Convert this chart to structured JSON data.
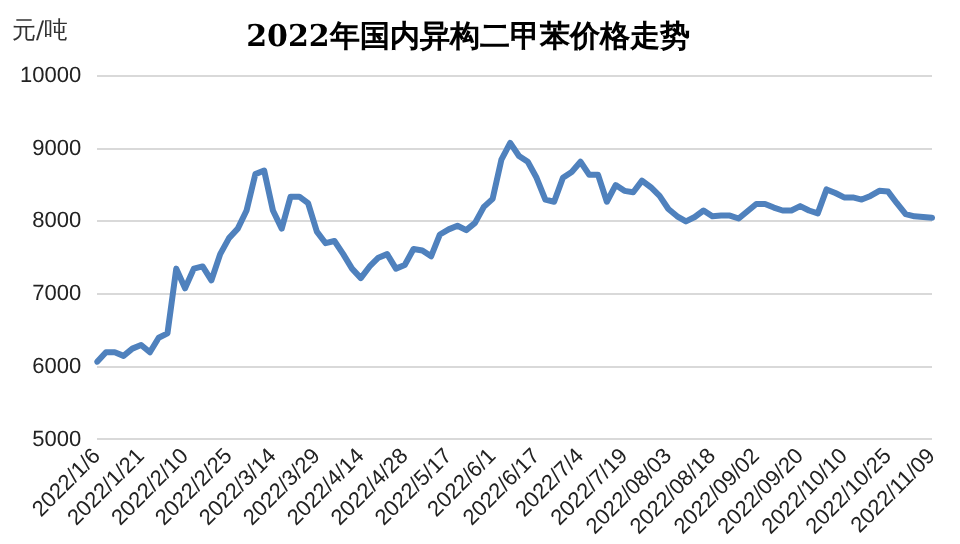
{
  "chart_data": {
    "type": "line",
    "title": "2022年国内异构二甲苯价格走势",
    "ylabel": "元/吨",
    "categories": [
      "2022/1/6",
      null,
      null,
      null,
      null,
      "2022/1/21",
      null,
      null,
      null,
      null,
      "2022/2/10",
      null,
      null,
      null,
      null,
      "2022/2/25",
      null,
      null,
      null,
      null,
      "2022/3/14",
      null,
      null,
      null,
      null,
      "2022/3/29",
      null,
      null,
      null,
      null,
      "2022/4/14",
      null,
      null,
      null,
      null,
      "2022/4/28",
      null,
      null,
      null,
      null,
      "2022/5/17",
      null,
      null,
      null,
      null,
      "2022/6/1",
      null,
      null,
      null,
      null,
      "2022/6/17",
      null,
      null,
      null,
      null,
      "2022/7/4",
      null,
      null,
      null,
      null,
      "2022/7/19",
      null,
      null,
      null,
      null,
      "2022/08/03",
      null,
      null,
      null,
      null,
      "2022/08/18",
      null,
      null,
      null,
      null,
      "2022/09/02",
      null,
      null,
      null,
      null,
      "2022/09/20",
      null,
      null,
      null,
      null,
      "2022/10/10",
      null,
      null,
      null,
      null,
      "2022/10/25",
      null,
      null,
      null,
      null,
      "2022/11/09"
    ],
    "series": [
      {
        "color": "#4f81bd",
        "values": [
          6070,
          6200,
          6200,
          6150,
          6250,
          6300,
          6200,
          6400,
          6460,
          7350,
          7080,
          7350,
          7380,
          7190,
          7550,
          7770,
          7900,
          8150,
          8650,
          8700,
          8150,
          7900,
          8340,
          8340,
          8250,
          7860,
          7700,
          7730,
          7550,
          7350,
          7220,
          7380,
          7500,
          7550,
          7350,
          7400,
          7620,
          7600,
          7520,
          7820,
          7890,
          7940,
          7880,
          7980,
          8200,
          8310,
          8850,
          9080,
          8900,
          8820,
          8600,
          8300,
          8270,
          8600,
          8680,
          8820,
          8640,
          8640,
          8270,
          8500,
          8420,
          8400,
          8560,
          8470,
          8350,
          8170,
          8070,
          8000,
          8060,
          8150,
          8070,
          8080,
          8080,
          8040,
          8140,
          8240,
          8240,
          8190,
          8150,
          8150,
          8210,
          8150,
          8110,
          8440,
          8390,
          8330,
          8330,
          8300,
          8350,
          8420,
          8410,
          8250,
          8100,
          8070,
          8060,
          8050
        ]
      }
    ],
    "ylim": [
      5000,
      10000
    ],
    "yticks": [
      5000,
      6000,
      7000,
      8000,
      9000,
      10000
    ],
    "grid": "y",
    "legend": false,
    "marker": "none",
    "line_style": "solid"
  }
}
